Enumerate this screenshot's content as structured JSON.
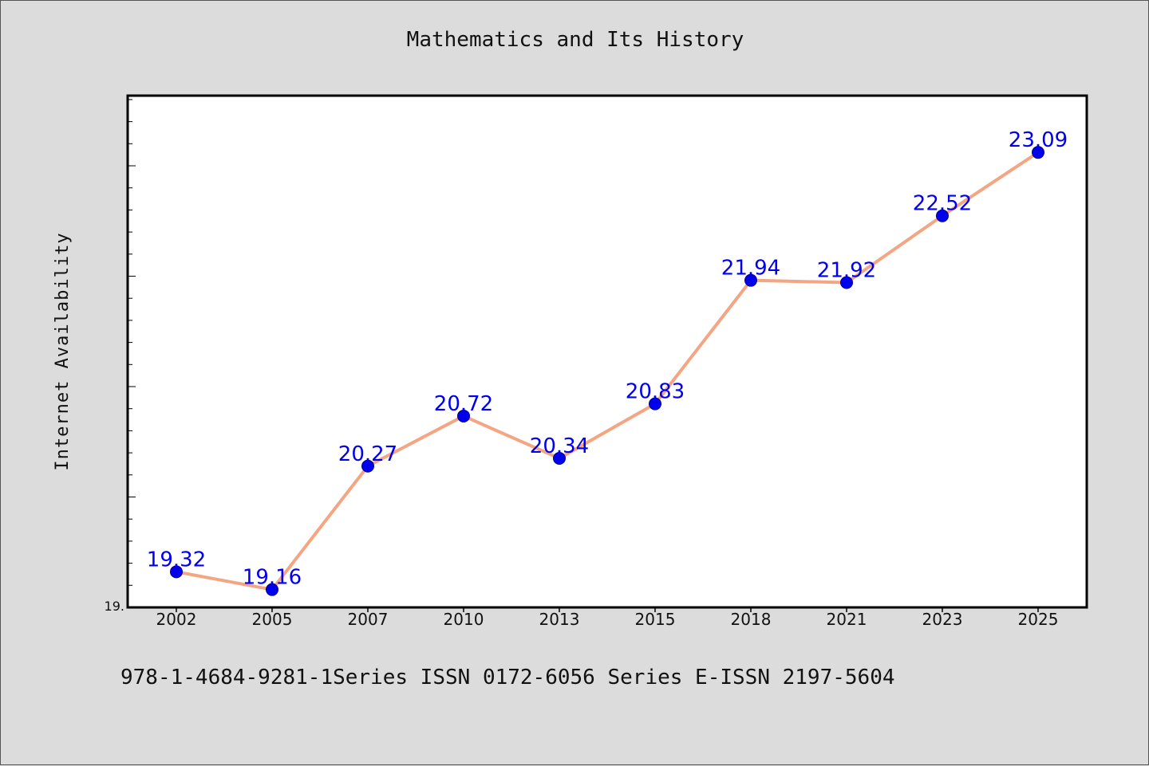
{
  "title": "Mathematics and Its History",
  "footer": "978-1-4684-9281-1Series ISSN 0172-6056 Series E-ISSN 2197-5604",
  "chart_data": {
    "type": "line",
    "title": "Mathematics and Its History",
    "xlabel": "",
    "ylabel": "Internet Availability",
    "categories": [
      "2002",
      "2005",
      "2007",
      "2010",
      "2013",
      "2015",
      "2018",
      "2021",
      "2023",
      "2025"
    ],
    "series": [
      {
        "values": [
          19.32,
          19.16,
          20.27,
          20.72,
          20.34,
          20.83,
          21.94,
          21.92,
          22.52,
          23.09
        ]
      }
    ],
    "y_tick_labels": [
      "19."
    ],
    "ylim": [
      19.0,
      23.6
    ],
    "grid": false,
    "line_color": "#f4a582",
    "marker_color": "#0000ee",
    "label_color": "#0000ee"
  }
}
